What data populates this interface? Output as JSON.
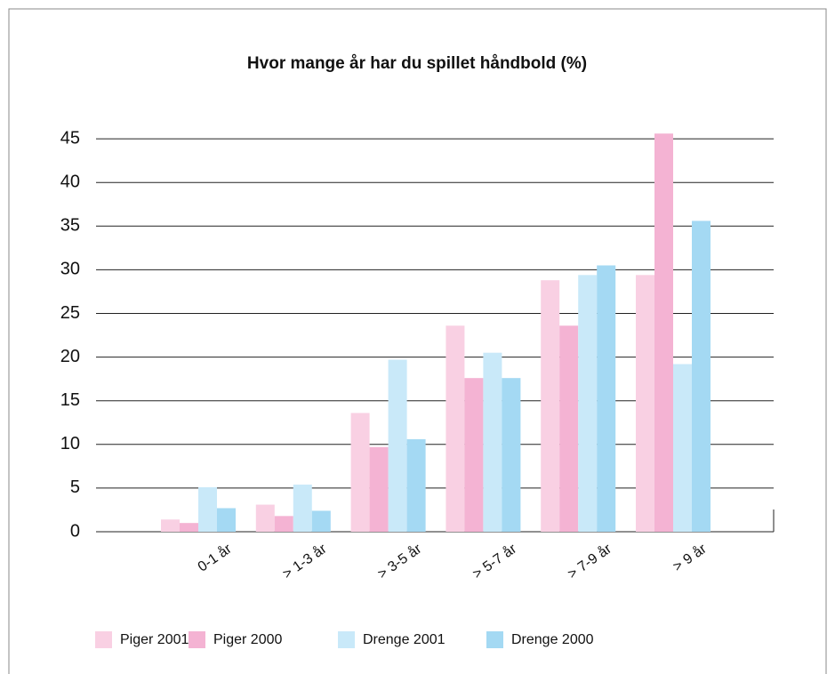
{
  "chart_data": {
    "type": "bar",
    "title": "Hvor mange år har du spillet håndbold (%)",
    "categories": [
      "0-1 år",
      "> 1-3 år",
      "> 3-5 år",
      "> 5-7 år",
      "> 7-9 år",
      "> 9 år"
    ],
    "series": [
      {
        "name": "Piger 2001",
        "color": "#f9d0e3",
        "values": [
          1.4,
          3.1,
          13.6,
          23.6,
          28.8,
          29.4
        ]
      },
      {
        "name": "Piger 2000",
        "color": "#f4b3d3",
        "values": [
          1.0,
          1.8,
          9.7,
          17.6,
          23.6,
          45.6
        ]
      },
      {
        "name": "Drenge 2001",
        "color": "#c9e9f9",
        "values": [
          5.1,
          5.4,
          19.7,
          20.5,
          29.4,
          19.2
        ]
      },
      {
        "name": "Drenge 2000",
        "color": "#a4d9f3",
        "values": [
          2.7,
          2.4,
          10.6,
          17.6,
          30.5,
          35.6
        ]
      }
    ],
    "ylim": [
      0,
      48
    ],
    "yticks": [
      0,
      5,
      10,
      15,
      20,
      25,
      30,
      35,
      40,
      45
    ],
    "grid": true
  }
}
